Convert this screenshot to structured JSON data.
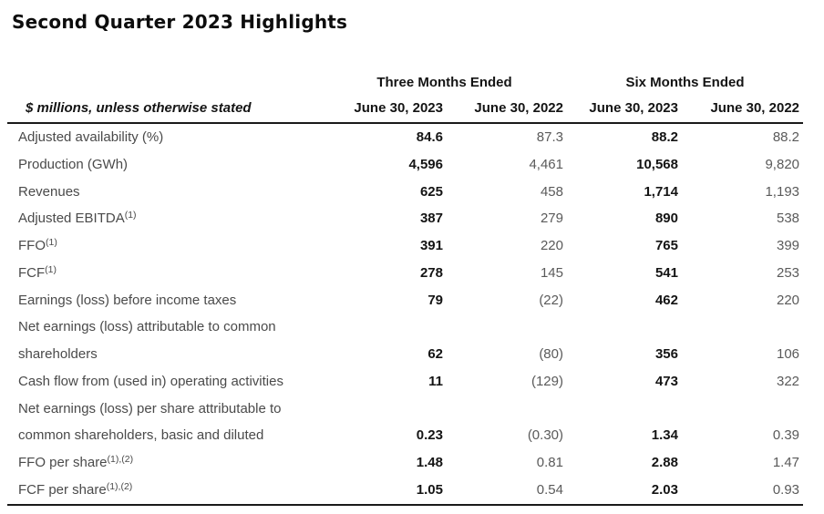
{
  "title": "Second Quarter 2023 Highlights",
  "colors": {
    "background": "#ffffff",
    "heading_text": "#0d0d0d",
    "header_text": "#141414",
    "label_text": "#4a4a4a",
    "value_text": "#5a5a5a",
    "bold_value_text": "#141414",
    "rule": "#1a1a1a"
  },
  "table": {
    "row_header": "$ millions, unless otherwise stated",
    "col_groups": [
      {
        "label": "Three Months Ended",
        "cols": [
          "June 30, 2023",
          "June 30, 2022"
        ]
      },
      {
        "label": "Six Months Ended",
        "cols": [
          "June 30, 2023",
          "June 30, 2022"
        ]
      }
    ],
    "rows": [
      {
        "label_lines": [
          "Adjusted availability (%)"
        ],
        "superscript": "",
        "values": [
          "84.6",
          "87.3",
          "88.2",
          "88.2"
        ]
      },
      {
        "label_lines": [
          "Production (GWh)"
        ],
        "superscript": "",
        "values": [
          "4,596",
          "4,461",
          "10,568",
          "9,820"
        ]
      },
      {
        "label_lines": [
          "Revenues"
        ],
        "superscript": "",
        "values": [
          "625",
          "458",
          "1,714",
          "1,193"
        ]
      },
      {
        "label_lines": [
          "Adjusted EBITDA"
        ],
        "superscript": "(1)",
        "values": [
          "387",
          "279",
          "890",
          "538"
        ]
      },
      {
        "label_lines": [
          "FFO"
        ],
        "superscript": "(1)",
        "values": [
          "391",
          "220",
          "765",
          "399"
        ]
      },
      {
        "label_lines": [
          "FCF"
        ],
        "superscript": "(1)",
        "values": [
          "278",
          "145",
          "541",
          "253"
        ]
      },
      {
        "label_lines": [
          "Earnings (loss) before income taxes"
        ],
        "superscript": "",
        "values": [
          "79",
          "(22)",
          "462",
          "220"
        ]
      },
      {
        "label_lines": [
          "Net earnings (loss) attributable to common",
          "shareholders"
        ],
        "superscript": "",
        "values": [
          "62",
          "(80)",
          "356",
          "106"
        ]
      },
      {
        "label_lines": [
          "Cash flow from (used in) operating activities"
        ],
        "superscript": "",
        "values": [
          "11",
          "(129)",
          "473",
          "322"
        ]
      },
      {
        "label_lines": [
          "Net earnings (loss) per share attributable to",
          "common shareholders, basic and diluted"
        ],
        "superscript": "",
        "values": [
          "0.23",
          "(0.30)",
          "1.34",
          "0.39"
        ]
      },
      {
        "label_lines": [
          "FFO per share"
        ],
        "superscript": "(1),(2)",
        "values": [
          "1.48",
          "0.81",
          "2.88",
          "1.47"
        ]
      },
      {
        "label_lines": [
          "FCF per share"
        ],
        "superscript": "(1),(2)",
        "values": [
          "1.05",
          "0.54",
          "2.03",
          "0.93"
        ]
      }
    ]
  }
}
